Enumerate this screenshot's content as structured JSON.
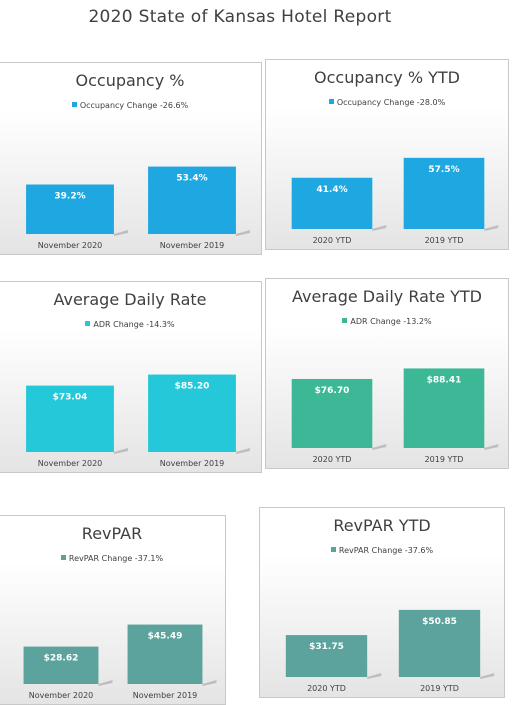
{
  "page_title": "2020 State of Kansas Hotel Report",
  "colors": {
    "blue": "#1ea7e1",
    "cyan": "#25c8d9",
    "green": "#3cb896",
    "teal": "#5ba39c"
  },
  "chart_data": [
    {
      "type": "bar",
      "title": "Occupancy %",
      "legend": "Occupancy Change -26.6%",
      "color": "#1ea7e1",
      "categories": [
        "November 2020",
        "November 2019"
      ],
      "values": [
        39.2,
        53.4
      ],
      "labels": [
        "39.2%",
        "53.4%"
      ],
      "ylim": [
        0,
        80
      ]
    },
    {
      "type": "bar",
      "title": "Occupancy % YTD",
      "legend": "Occupancy Change -28.0%",
      "color": "#1ea7e1",
      "categories": [
        "2020 YTD",
        "2019 YTD"
      ],
      "values": [
        41.4,
        57.5
      ],
      "labels": [
        "41.4%",
        "57.5%"
      ],
      "ylim": [
        0,
        80
      ]
    },
    {
      "type": "bar",
      "title": "Average Daily Rate",
      "legend": "ADR Change -14.3%",
      "color": "#25c8d9",
      "categories": [
        "November 2020",
        "November 2019"
      ],
      "values": [
        73.04,
        85.2
      ],
      "labels": [
        "$73.04",
        "$85.20"
      ],
      "ylim": [
        0,
        110
      ]
    },
    {
      "type": "bar",
      "title": "Average Daily Rate YTD",
      "legend": "ADR Change -13.2%",
      "color": "#3cb896",
      "categories": [
        "2020 YTD",
        "2019 YTD"
      ],
      "values": [
        76.7,
        88.41
      ],
      "labels": [
        "$76.70",
        "$88.41"
      ],
      "ylim": [
        0,
        110
      ]
    },
    {
      "type": "bar",
      "title": "RevPAR",
      "legend": "RevPAR Change -37.1%",
      "color": "#5ba39c",
      "categories": [
        "November 2020",
        "November 2019"
      ],
      "values": [
        28.62,
        45.49
      ],
      "labels": [
        "$28.62",
        "$45.49"
      ],
      "ylim": [
        0,
        75
      ]
    },
    {
      "type": "bar",
      "title": "RevPAR YTD",
      "legend": "RevPAR Change -37.6%",
      "color": "#5ba39c",
      "categories": [
        "2020 YTD",
        "2019 YTD"
      ],
      "values": [
        31.75,
        50.85
      ],
      "labels": [
        "$31.75",
        "$50.85"
      ],
      "ylim": [
        0,
        75
      ]
    }
  ]
}
